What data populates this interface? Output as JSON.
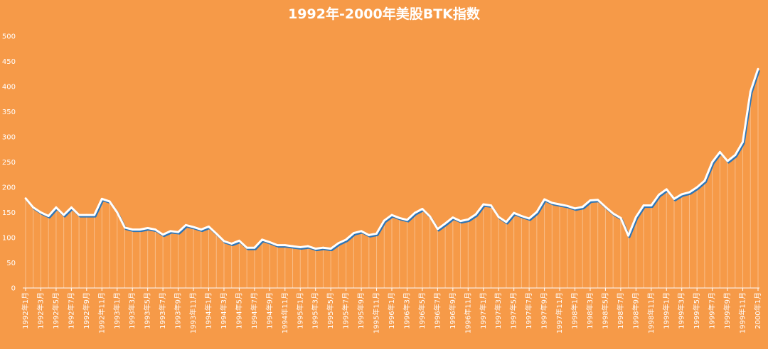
{
  "chart_data": {
    "type": "line",
    "title": "1992年-2000年美股BTK指数",
    "xlabel": "",
    "ylabel": "",
    "ylim": [
      0,
      500
    ],
    "yticks": [
      0,
      50,
      100,
      150,
      200,
      250,
      300,
      350,
      400,
      450,
      500
    ],
    "grid": false,
    "legend": "none",
    "x": [
      "1992年1月",
      "1992年2月",
      "1992年3月",
      "1992年4月",
      "1992年5月",
      "1992年6月",
      "1992年7月",
      "1992年8月",
      "1992年9月",
      "1992年10月",
      "1992年11月",
      "1992年12月",
      "1993年1月",
      "1993年2月",
      "1993年3月",
      "1993年4月",
      "1993年5月",
      "1993年6月",
      "1993年7月",
      "1993年8月",
      "1993年9月",
      "1993年10月",
      "1993年11月",
      "1993年12月",
      "1994年1月",
      "1994年2月",
      "1994年3月",
      "1994年4月",
      "1994年5月",
      "1994年6月",
      "1994年7月",
      "1994年8月",
      "1994年9月",
      "1994年10月",
      "1994年11月",
      "1994年12月",
      "1995年1月",
      "1995年2月",
      "1995年3月",
      "1995年4月",
      "1995年5月",
      "1995年6月",
      "1995年7月",
      "1995年8月",
      "1995年9月",
      "1995年10月",
      "1995年11月",
      "1995年12月",
      "1996年1月",
      "1996年2月",
      "1996年3月",
      "1996年4月",
      "1996年5月",
      "1996年6月",
      "1996年7月",
      "1996年8月",
      "1996年9月",
      "1996年10月",
      "1996年11月",
      "1996年12月",
      "1997年1月",
      "1997年2月",
      "1997年3月",
      "1997年4月",
      "1997年5月",
      "1997年6月",
      "1997年7月",
      "1997年8月",
      "1997年9月",
      "1997年10月",
      "1997年11月",
      "1997年12月",
      "1998年1月",
      "1998年2月",
      "1998年3月",
      "1998年4月",
      "1998年5月",
      "1998年6月",
      "1998年7月",
      "1998年8月",
      "1998年9月",
      "1998年10月",
      "1998年11月",
      "1998年12月",
      "1999年1月",
      "1999年2月",
      "1999年3月",
      "1999年4月",
      "1999年5月",
      "1999年6月",
      "1999年7月",
      "1999年8月",
      "1999年9月",
      "1999年10月",
      "1999年11月",
      "1999年12月",
      "2000年1月"
    ],
    "series": [
      {
        "color": "#FFFFFF",
        "shadow_color": "#2E75B6",
        "values": [
          178,
          160,
          150,
          143,
          160,
          145,
          160,
          145,
          145,
          145,
          177,
          172,
          150,
          120,
          116,
          116,
          119,
          116,
          106,
          113,
          111,
          125,
          121,
          116,
          122,
          108,
          93,
          88,
          94,
          80,
          80,
          96,
          91,
          85,
          85,
          83,
          81,
          83,
          78,
          80,
          78,
          89,
          96,
          109,
          113,
          105,
          108,
          134,
          145,
          139,
          135,
          149,
          157,
          142,
          117,
          128,
          140,
          133,
          136,
          146,
          166,
          164,
          141,
          131,
          149,
          143,
          138,
          151,
          176,
          169,
          166,
          163,
          158,
          161,
          174,
          175,
          161,
          148,
          139,
          104,
          141,
          164,
          164,
          185,
          196,
          177,
          186,
          190,
          200,
          213,
          250,
          270,
          252,
          264,
          290,
          390,
          435
        ]
      }
    ]
  }
}
